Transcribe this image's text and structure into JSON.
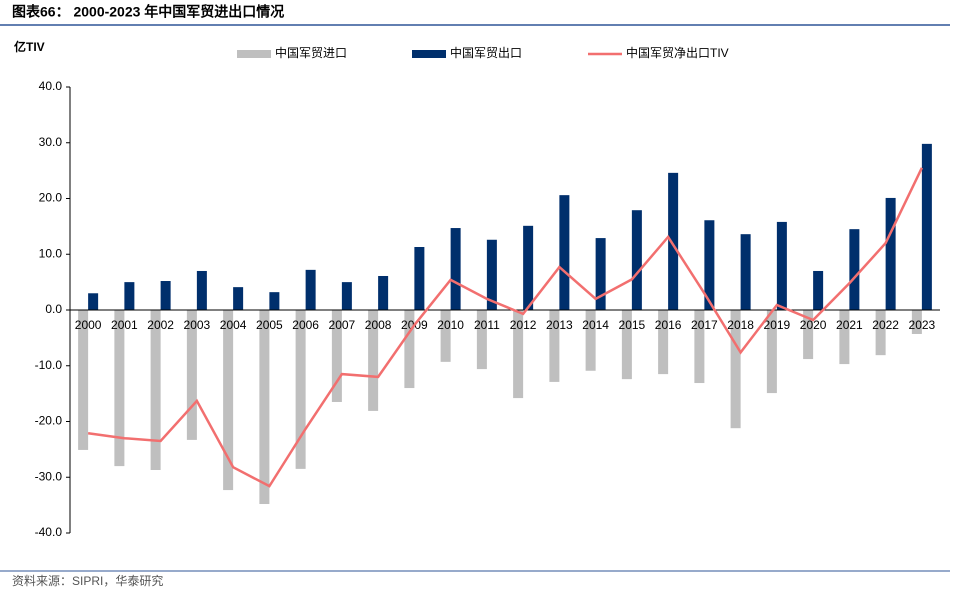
{
  "chart_data": {
    "type": "bar-line",
    "title": "图表66： 2000-2023 年中国军贸进出口情况",
    "y_label": "亿TIV",
    "source": "资料来源：SIPRI，华泰研究",
    "categories": [
      "2000",
      "2001",
      "2002",
      "2003",
      "2004",
      "2005",
      "2006",
      "2007",
      "2008",
      "2009",
      "2010",
      "2011",
      "2012",
      "2013",
      "2014",
      "2015",
      "2016",
      "2017",
      "2018",
      "2019",
      "2020",
      "2021",
      "2022",
      "2023"
    ],
    "series": [
      {
        "name": "中国军贸进口",
        "type": "bar",
        "color": "#bfbfbf",
        "values": [
          -25.1,
          -28.0,
          -28.7,
          -23.3,
          -32.3,
          -34.8,
          -28.5,
          -16.5,
          -18.1,
          -14.0,
          -9.3,
          -10.6,
          -15.8,
          -12.9,
          -10.9,
          -12.4,
          -11.5,
          -13.1,
          -21.2,
          -14.9,
          -8.8,
          -9.7,
          -8.1,
          -4.3
        ]
      },
      {
        "name": "中国军贸出口",
        "type": "bar",
        "color": "#002f6c",
        "values": [
          3.0,
          5.0,
          5.2,
          7.0,
          4.1,
          3.2,
          7.2,
          5.0,
          6.1,
          11.3,
          14.7,
          12.6,
          15.1,
          20.6,
          12.9,
          17.9,
          24.6,
          16.1,
          13.6,
          15.8,
          7.0,
          14.5,
          20.1,
          29.8
        ]
      },
      {
        "name": "中国军贸净出口TIV",
        "type": "line",
        "color": "#f26f6f",
        "values": [
          -22.1,
          -23.0,
          -23.5,
          -16.3,
          -28.2,
          -31.6,
          -21.3,
          -11.5,
          -12.0,
          -2.7,
          5.4,
          2.0,
          -0.7,
          7.7,
          2.0,
          5.5,
          13.1,
          3.0,
          -7.6,
          0.9,
          -1.8,
          4.8,
          12.0,
          25.5
        ]
      }
    ],
    "ylim": [
      -40,
      40
    ],
    "yticks": [
      {
        "value": -40,
        "label": "-40.0"
      },
      {
        "value": -30,
        "label": "-30.0"
      },
      {
        "value": -20,
        "label": "-20.0"
      },
      {
        "value": -10,
        "label": "-10.0"
      },
      {
        "value": 0,
        "label": "0.0"
      },
      {
        "value": 10,
        "label": "10.0"
      },
      {
        "value": 20,
        "label": "20.0"
      },
      {
        "value": 30,
        "label": "30.0"
      },
      {
        "value": 40,
        "label": "40.0"
      }
    ]
  }
}
